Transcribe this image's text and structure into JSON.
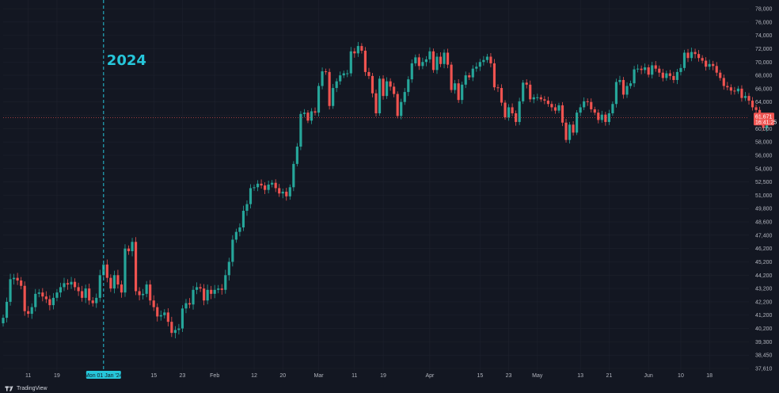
{
  "brand": {
    "name": "TradingView",
    "logo_icon": "tradingview-logo-icon"
  },
  "colors": {
    "background": "#131722",
    "up": "#26a69a",
    "down": "#ef5350",
    "grid": "#1e222d",
    "text": "#b2b5be",
    "year_marker": "#26c6da",
    "price_line": "#ef5350"
  },
  "chart_data": {
    "type": "candlestick",
    "title": "",
    "year_marker": {
      "label": "2024",
      "x": "Jan 01 2024"
    },
    "axis_date_label": "Mon 01 Jan '24",
    "current_price": {
      "value": "61,671",
      "countdown": "16:41:25",
      "y": 61671
    },
    "y_ticks": [
      "78,000",
      "76,000",
      "74,000",
      "72,000",
      "70,000",
      "68,000",
      "66,000",
      "64,000",
      "62,000",
      "60,000",
      "58,000",
      "56,000",
      "54,000",
      "52,500",
      "51,000",
      "49,800",
      "48,600",
      "47,400",
      "46,200",
      "45,200",
      "44,200",
      "43,200",
      "42,200",
      "41,200",
      "40,200",
      "39,300",
      "38,450",
      "37,610"
    ],
    "y_tick_values": [
      78000,
      76000,
      74000,
      72000,
      70000,
      68000,
      66000,
      64000,
      62000,
      60000,
      58000,
      56000,
      54000,
      52500,
      51000,
      49800,
      48600,
      47400,
      46200,
      45200,
      44200,
      43200,
      42200,
      41200,
      40200,
      39300,
      38450,
      37610
    ],
    "x_ticks": [
      {
        "label": "11",
        "date": "Dec 11 2023"
      },
      {
        "label": "19",
        "date": "Dec 19 2023"
      },
      {
        "label": "15",
        "date": "Jan 15 2024"
      },
      {
        "label": "23",
        "date": "Jan 23 2024"
      },
      {
        "label": "Feb",
        "date": "Feb 01 2024"
      },
      {
        "label": "12",
        "date": "Feb 12 2024"
      },
      {
        "label": "20",
        "date": "Feb 20 2024"
      },
      {
        "label": "Mar",
        "date": "Mar 01 2024"
      },
      {
        "label": "11",
        "date": "Mar 11 2024"
      },
      {
        "label": "19",
        "date": "Mar 19 2024"
      },
      {
        "label": "Apr",
        "date": "Apr 01 2024"
      },
      {
        "label": "15",
        "date": "Apr 15 2024"
      },
      {
        "label": "23",
        "date": "Apr 23 2024"
      },
      {
        "label": "May",
        "date": "May 01 2024"
      },
      {
        "label": "13",
        "date": "May 13 2024"
      },
      {
        "label": "21",
        "date": "May 21 2024"
      },
      {
        "label": "Jun",
        "date": "Jun 01 2024"
      },
      {
        "label": "10",
        "date": "Jun 10 2024"
      },
      {
        "label": "18",
        "date": "Jun 18 2024"
      }
    ],
    "x_range": [
      "Dec 04 2023",
      "Jun 29 2024"
    ],
    "candles_start": "Dec 04 2023",
    "closes": [
      41000,
      42200,
      43900,
      44000,
      43800,
      43400,
      41500,
      41300,
      41800,
      42800,
      42900,
      42600,
      42400,
      41950,
      42500,
      42900,
      43300,
      43600,
      43500,
      43700,
      43300,
      43000,
      42500,
      43200,
      42300,
      42100,
      42500,
      44200,
      45000,
      44000,
      43200,
      44200,
      43500,
      42900,
      46200,
      46000,
      46800,
      43000,
      42700,
      42800,
      43500,
      42300,
      41800,
      41100,
      41200,
      41400,
      40700,
      39900,
      40100,
      40200,
      41700,
      42100,
      42000,
      43100,
      43300,
      43200,
      42300,
      43100,
      42800,
      43100,
      43200,
      43100,
      44200,
      45200,
      47000,
      47700,
      48100,
      49600,
      50200,
      51800,
      51900,
      52300,
      52100,
      51600,
      52200,
      52400,
      51800,
      51200,
      51400,
      50900,
      51900,
      54700,
      57300,
      62200,
      62400,
      61200,
      62600,
      62400,
      66400,
      68600,
      68500,
      63400,
      66100,
      67100,
      68000,
      68300,
      68300,
      71600,
      71300,
      72400,
      71700,
      68500,
      67900,
      65300,
      62300,
      67500,
      64900,
      67100,
      66300,
      65200,
      61900,
      64000,
      65500,
      67400,
      69800,
      70700,
      69400,
      70000,
      70400,
      71600,
      68800,
      70800,
      69700,
      71400,
      69600,
      65800,
      66800,
      64300,
      66600,
      68000,
      67700,
      69000,
      69300,
      70000,
      70300,
      70800,
      69800,
      66200,
      66100,
      63900,
      61700,
      63200,
      62300,
      61000,
      64100,
      66900,
      66600,
      64400,
      64700,
      64700,
      64400,
      64200,
      63700,
      63200,
      62700,
      63500,
      60900,
      58300,
      60600,
      59400,
      62400,
      63200,
      64100,
      64000,
      62900,
      62400,
      61300,
      62100,
      61000,
      62300,
      63700,
      67000,
      67300,
      65100,
      66400,
      66800,
      68900,
      69000,
      68800,
      69200,
      68100,
      69500,
      69000,
      68400,
      67600,
      68300,
      67900,
      67300,
      68500,
      69100,
      71400,
      70600,
      71500,
      71200,
      70600,
      70200,
      69300,
      69700,
      69400,
      68400,
      67600,
      66400,
      66200,
      65700,
      65600,
      66000,
      64600,
      64900,
      64200,
      63200,
      62800,
      61100,
      60100,
      61671
    ],
    "ylim": [
      37610,
      78000
    ]
  }
}
